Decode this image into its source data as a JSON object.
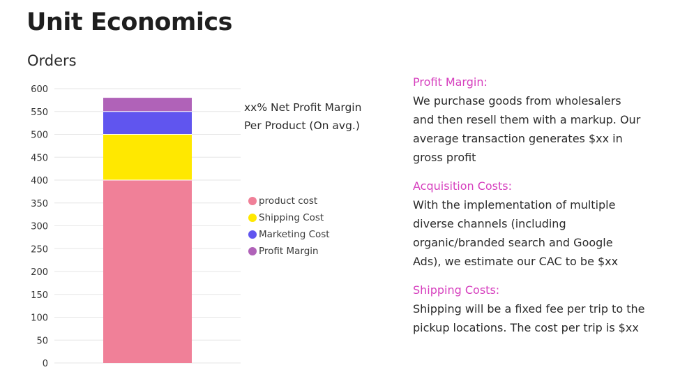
{
  "page": {
    "title": "Unit Economics",
    "chart_subtitle": "Orders"
  },
  "chart_note": {
    "line1": "xx% Net Profit Margin",
    "line2": "Per Product (On avg.)"
  },
  "chart_data": {
    "type": "bar",
    "stacked": true,
    "title": "Orders",
    "categories": [
      ""
    ],
    "series": [
      {
        "name": "product cost",
        "values": [
          400
        ],
        "color": "#f08098"
      },
      {
        "name": "Shipping Cost",
        "values": [
          100
        ],
        "color": "#ffe800"
      },
      {
        "name": "Marketing Cost",
        "values": [
          50
        ],
        "color": "#6055ef"
      },
      {
        "name": "Profit Margin",
        "values": [
          30
        ],
        "color": "#b062b8"
      }
    ],
    "ylim": [
      0,
      600
    ],
    "yticks": [
      "0",
      "50",
      "100",
      "150",
      "200",
      "250",
      "300",
      "350",
      "400",
      "450",
      "500",
      "550",
      "600"
    ],
    "grid": true,
    "legend_position": "right"
  },
  "sections": [
    {
      "heading": "Profit Margin:",
      "lines": [
        "We purchase goods from wholesalers",
        "and then resell them with a markup. Our",
        "average transaction generates $xx in",
        "gross profit"
      ]
    },
    {
      "heading": "Acquisition Costs:",
      "lines": [
        "With the implementation of multiple",
        "diverse channels (including",
        "organic/branded search and Google",
        "Ads), we estimate our CAC to be $xx"
      ]
    },
    {
      "heading": "Shipping Costs:",
      "lines": [
        "Shipping will be a fixed fee per trip to the",
        "pickup locations. The cost per trip is $xx"
      ]
    }
  ],
  "colors": {
    "heading_accent": "#d63fbe",
    "grid": "#e6e6e6"
  }
}
